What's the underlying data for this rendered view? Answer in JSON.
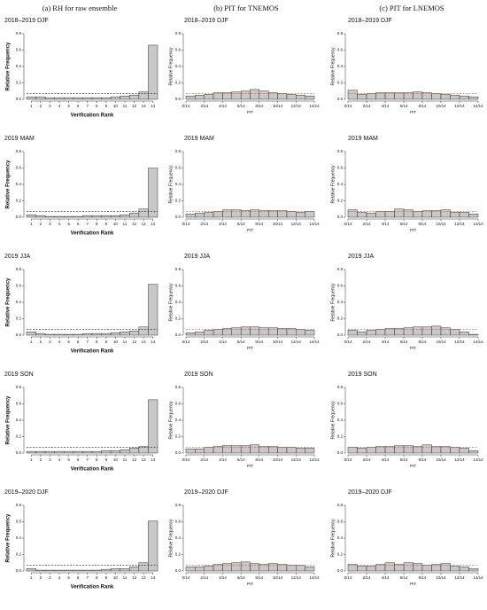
{
  "column_titles": [
    "(a) RH for raw ensemble",
    "(b) PIT for TNEMOS",
    "(c) PIT for LNEMOS"
  ],
  "chart_data": [
    {
      "type": "bar",
      "title": "2018–2019 DJF",
      "ylabel": "Relative Frequency",
      "xlabel": "Verification Rank",
      "categories": [
        "1",
        "2",
        "3",
        "4",
        "5",
        "6",
        "7",
        "8",
        "9",
        "10",
        "11",
        "12",
        "13",
        "14"
      ],
      "values": [
        0.03,
        0.03,
        0.02,
        0.02,
        0.02,
        0.02,
        0.02,
        0.02,
        0.02,
        0.03,
        0.04,
        0.05,
        0.09,
        0.66
      ],
      "color": "#c8c8c8",
      "ylim": [
        0,
        0.8
      ],
      "yticks": [
        {
          "value": 0,
          "label": "0.0"
        },
        0.2,
        0.4,
        0.6,
        0.8
      ],
      "hline": 0.071,
      "hline_color": "#222222"
    },
    {
      "type": "histogram",
      "title": "2018–2019 DJF",
      "ylabel": "Relative Frequency",
      "xlabel": "PIT",
      "bins": [
        0,
        0.071,
        0.143,
        0.214,
        0.286,
        0.357,
        0.429,
        0.5,
        0.571,
        0.643,
        0.714,
        0.786,
        0.857,
        0.929,
        1
      ],
      "values": [
        0.04,
        0.05,
        0.06,
        0.08,
        0.08,
        0.09,
        0.1,
        0.12,
        0.1,
        0.08,
        0.07,
        0.06,
        0.05,
        0.04
      ],
      "color": "#c8c8c8",
      "xlim": [
        0,
        1
      ],
      "xticks": [
        {
          "value": 0,
          "label": "0/14"
        },
        {
          "value": 0.143,
          "label": "2/14"
        },
        {
          "value": 0.286,
          "label": "4/14"
        },
        {
          "value": 0.429,
          "label": "6/14"
        },
        {
          "value": 0.571,
          "label": "8/14"
        },
        {
          "value": 0.714,
          "label": "10/14"
        },
        {
          "value": 0.857,
          "label": "12/14"
        },
        {
          "value": 1,
          "label": "14/14"
        }
      ],
      "ylim": [
        0,
        0.8
      ],
      "yticks": [
        {
          "value": 0,
          "label": "0.0"
        },
        0.2,
        0.4,
        0.6,
        0.8
      ],
      "hline": 0.071,
      "hline_color": "#e05050"
    },
    {
      "type": "histogram",
      "title": "2018–2019 DJF",
      "ylabel": "Relative Frequency",
      "xlabel": "PIT",
      "bins": [
        0,
        0.071,
        0.143,
        0.214,
        0.286,
        0.357,
        0.429,
        0.5,
        0.571,
        0.643,
        0.714,
        0.786,
        0.857,
        0.929,
        1
      ],
      "values": [
        0.11,
        0.06,
        0.07,
        0.08,
        0.08,
        0.08,
        0.08,
        0.09,
        0.08,
        0.07,
        0.06,
        0.05,
        0.04,
        0.03
      ],
      "color": "#c8c8c8",
      "xlim": [
        0,
        1
      ],
      "xticks": [
        {
          "value": 0,
          "label": "0/14"
        },
        {
          "value": 0.143,
          "label": "2/14"
        },
        {
          "value": 0.286,
          "label": "4/14"
        },
        {
          "value": 0.429,
          "label": "6/14"
        },
        {
          "value": 0.571,
          "label": "8/14"
        },
        {
          "value": 0.714,
          "label": "10/14"
        },
        {
          "value": 0.857,
          "label": "12/14"
        },
        {
          "value": 1,
          "label": "14/14"
        }
      ],
      "ylim": [
        0,
        0.8
      ],
      "yticks": [
        {
          "value": 0,
          "label": "0.0"
        },
        0.2,
        0.4,
        0.6,
        0.8
      ],
      "hline": 0.071,
      "hline_color": "#e05050"
    },
    {
      "type": "bar",
      "title": "2019 MAM",
      "ylabel": "Relative Frequency",
      "xlabel": "Verification Rank",
      "categories": [
        "1",
        "2",
        "3",
        "4",
        "5",
        "6",
        "7",
        "8",
        "9",
        "10",
        "11",
        "12",
        "13",
        "14"
      ],
      "values": [
        0.03,
        0.02,
        0.01,
        0.01,
        0.01,
        0.01,
        0.02,
        0.02,
        0.02,
        0.02,
        0.03,
        0.05,
        0.1,
        0.6
      ],
      "color": "#c8c8c8",
      "ylim": [
        0,
        0.8
      ],
      "yticks": [
        {
          "value": 0,
          "label": "0.0"
        },
        0.2,
        0.4,
        0.6,
        0.8
      ],
      "hline": 0.071,
      "hline_color": "#222222"
    },
    {
      "type": "histogram",
      "title": "2019 MAM",
      "ylabel": "Relative Frequency",
      "xlabel": "PIT",
      "bins": [
        0,
        0.071,
        0.143,
        0.214,
        0.286,
        0.357,
        0.429,
        0.5,
        0.571,
        0.643,
        0.714,
        0.786,
        0.857,
        0.929,
        1
      ],
      "values": [
        0.04,
        0.05,
        0.06,
        0.07,
        0.09,
        0.09,
        0.08,
        0.09,
        0.08,
        0.08,
        0.08,
        0.07,
        0.06,
        0.07
      ],
      "color": "#c8c8c8",
      "xlim": [
        0,
        1
      ],
      "xticks": [
        {
          "value": 0,
          "label": "0/14"
        },
        {
          "value": 0.143,
          "label": "2/14"
        },
        {
          "value": 0.286,
          "label": "4/14"
        },
        {
          "value": 0.429,
          "label": "6/14"
        },
        {
          "value": 0.571,
          "label": "8/14"
        },
        {
          "value": 0.714,
          "label": "10/14"
        },
        {
          "value": 0.857,
          "label": "12/14"
        },
        {
          "value": 1,
          "label": "14/14"
        }
      ],
      "ylim": [
        0,
        0.8
      ],
      "yticks": [
        {
          "value": 0,
          "label": "0.0"
        },
        0.2,
        0.4,
        0.6,
        0.8
      ],
      "hline": 0.071,
      "hline_color": "#e05050"
    },
    {
      "type": "histogram",
      "title": "2019 MAM",
      "ylabel": "Relative Frequency",
      "xlabel": "PIT",
      "bins": [
        0,
        0.071,
        0.143,
        0.214,
        0.286,
        0.357,
        0.429,
        0.5,
        0.571,
        0.643,
        0.714,
        0.786,
        0.857,
        0.929,
        1
      ],
      "values": [
        0.09,
        0.06,
        0.05,
        0.07,
        0.07,
        0.1,
        0.09,
        0.07,
        0.08,
        0.08,
        0.09,
        0.06,
        0.06,
        0.04
      ],
      "color": "#c8c8c8",
      "xlim": [
        0,
        1
      ],
      "xticks": [
        {
          "value": 0,
          "label": "0/14"
        },
        {
          "value": 0.143,
          "label": "2/14"
        },
        {
          "value": 0.286,
          "label": "4/14"
        },
        {
          "value": 0.429,
          "label": "6/14"
        },
        {
          "value": 0.571,
          "label": "8/14"
        },
        {
          "value": 0.714,
          "label": "10/14"
        },
        {
          "value": 0.857,
          "label": "12/14"
        },
        {
          "value": 1,
          "label": "14/14"
        }
      ],
      "ylim": [
        0,
        0.8
      ],
      "yticks": [
        {
          "value": 0,
          "label": "0.0"
        },
        0.2,
        0.4,
        0.6,
        0.8
      ],
      "hline": 0.071,
      "hline_color": "#e05050"
    },
    {
      "type": "bar",
      "title": "2019 JJA",
      "ylabel": "Relative Frequency",
      "xlabel": "Verification Rank",
      "categories": [
        "1",
        "2",
        "3",
        "4",
        "5",
        "6",
        "7",
        "8",
        "9",
        "10",
        "11",
        "12",
        "13",
        "14"
      ],
      "values": [
        0.04,
        0.02,
        0.01,
        0.01,
        0.01,
        0.01,
        0.02,
        0.02,
        0.02,
        0.03,
        0.04,
        0.05,
        0.1,
        0.62
      ],
      "color": "#c8c8c8",
      "ylim": [
        0,
        0.8
      ],
      "yticks": [
        {
          "value": 0,
          "label": "0.0"
        },
        0.2,
        0.4,
        0.6,
        0.8
      ],
      "hline": 0.071,
      "hline_color": "#222222"
    },
    {
      "type": "histogram",
      "title": "2019 JJA",
      "ylabel": "Relative Frequency",
      "xlabel": "PIT",
      "bins": [
        0,
        0.071,
        0.143,
        0.214,
        0.286,
        0.357,
        0.429,
        0.5,
        0.571,
        0.643,
        0.714,
        0.786,
        0.857,
        0.929,
        1
      ],
      "values": [
        0.03,
        0.04,
        0.06,
        0.07,
        0.08,
        0.09,
        0.1,
        0.1,
        0.09,
        0.09,
        0.08,
        0.08,
        0.07,
        0.06
      ],
      "color": "#c8c8c8",
      "xlim": [
        0,
        1
      ],
      "xticks": [
        {
          "value": 0,
          "label": "0/14"
        },
        {
          "value": 0.143,
          "label": "2/14"
        },
        {
          "value": 0.286,
          "label": "4/14"
        },
        {
          "value": 0.429,
          "label": "6/14"
        },
        {
          "value": 0.571,
          "label": "8/14"
        },
        {
          "value": 0.714,
          "label": "10/14"
        },
        {
          "value": 0.857,
          "label": "12/14"
        },
        {
          "value": 1,
          "label": "14/14"
        }
      ],
      "ylim": [
        0,
        0.8
      ],
      "yticks": [
        {
          "value": 0,
          "label": "0.0"
        },
        0.2,
        0.4,
        0.6,
        0.8
      ],
      "hline": 0.071,
      "hline_color": "#e05050"
    },
    {
      "type": "histogram",
      "title": "2019 JJA",
      "ylabel": "Relative Frequency",
      "xlabel": "PIT",
      "bins": [
        0,
        0.071,
        0.143,
        0.214,
        0.286,
        0.357,
        0.429,
        0.5,
        0.571,
        0.643,
        0.714,
        0.786,
        0.857,
        0.929,
        1
      ],
      "values": [
        0.06,
        0.04,
        0.06,
        0.07,
        0.08,
        0.08,
        0.09,
        0.1,
        0.1,
        0.11,
        0.09,
        0.07,
        0.04,
        0.01
      ],
      "color": "#c8c8c8",
      "xlim": [
        0,
        1
      ],
      "xticks": [
        {
          "value": 0,
          "label": "0/14"
        },
        {
          "value": 0.143,
          "label": "2/14"
        },
        {
          "value": 0.286,
          "label": "4/14"
        },
        {
          "value": 0.429,
          "label": "6/14"
        },
        {
          "value": 0.571,
          "label": "8/14"
        },
        {
          "value": 0.714,
          "label": "10/14"
        },
        {
          "value": 0.857,
          "label": "12/14"
        },
        {
          "value": 1,
          "label": "14/14"
        }
      ],
      "ylim": [
        0,
        0.8
      ],
      "yticks": [
        {
          "value": 0,
          "label": "0.0"
        },
        0.2,
        0.4,
        0.6,
        0.8
      ],
      "hline": 0.071,
      "hline_color": "#e05050"
    },
    {
      "type": "bar",
      "title": "2019 SON",
      "ylabel": "Relative Frequency",
      "xlabel": "Verification Rank",
      "categories": [
        "1",
        "2",
        "3",
        "4",
        "5",
        "6",
        "7",
        "8",
        "9",
        "10",
        "11",
        "12",
        "13",
        "14"
      ],
      "values": [
        0.02,
        0.02,
        0.02,
        0.02,
        0.02,
        0.02,
        0.02,
        0.02,
        0.03,
        0.03,
        0.04,
        0.06,
        0.08,
        0.65
      ],
      "color": "#c8c8c8",
      "ylim": [
        0,
        0.8
      ],
      "yticks": [
        {
          "value": 0,
          "label": "0.0"
        },
        0.2,
        0.4,
        0.6,
        0.8
      ],
      "hline": 0.071,
      "hline_color": "#222222"
    },
    {
      "type": "histogram",
      "title": "2019 SON",
      "ylabel": "Relative Frequency",
      "xlabel": "PIT",
      "bins": [
        0,
        0.071,
        0.143,
        0.214,
        0.286,
        0.357,
        0.429,
        0.5,
        0.571,
        0.643,
        0.714,
        0.786,
        0.857,
        0.929,
        1
      ],
      "values": [
        0.05,
        0.05,
        0.07,
        0.08,
        0.09,
        0.09,
        0.09,
        0.1,
        0.08,
        0.08,
        0.07,
        0.07,
        0.06,
        0.06
      ],
      "color": "#c8c8c8",
      "xlim": [
        0,
        1
      ],
      "xticks": [
        {
          "value": 0,
          "label": "0/14"
        },
        {
          "value": 0.143,
          "label": "2/14"
        },
        {
          "value": 0.286,
          "label": "4/14"
        },
        {
          "value": 0.429,
          "label": "6/14"
        },
        {
          "value": 0.571,
          "label": "8/14"
        },
        {
          "value": 0.714,
          "label": "10/14"
        },
        {
          "value": 0.857,
          "label": "12/14"
        },
        {
          "value": 1,
          "label": "14/14"
        }
      ],
      "ylim": [
        0,
        0.8
      ],
      "yticks": [
        {
          "value": 0,
          "label": "0.0"
        },
        0.2,
        0.4,
        0.6,
        0.8
      ],
      "hline": 0.071,
      "hline_color": "#e05050"
    },
    {
      "type": "histogram",
      "title": "2019 SON",
      "ylabel": "Relative Frequency",
      "xlabel": "PIT",
      "bins": [
        0,
        0.071,
        0.143,
        0.214,
        0.286,
        0.357,
        0.429,
        0.5,
        0.571,
        0.643,
        0.714,
        0.786,
        0.857,
        0.929,
        1
      ],
      "values": [
        0.07,
        0.06,
        0.07,
        0.08,
        0.08,
        0.09,
        0.09,
        0.08,
        0.1,
        0.08,
        0.08,
        0.07,
        0.06,
        0.03
      ],
      "color": "#c8c8c8",
      "xlim": [
        0,
        1
      ],
      "xticks": [
        {
          "value": 0,
          "label": "0/14"
        },
        {
          "value": 0.143,
          "label": "2/14"
        },
        {
          "value": 0.286,
          "label": "4/14"
        },
        {
          "value": 0.429,
          "label": "6/14"
        },
        {
          "value": 0.571,
          "label": "8/14"
        },
        {
          "value": 0.714,
          "label": "10/14"
        },
        {
          "value": 0.857,
          "label": "12/14"
        },
        {
          "value": 1,
          "label": "14/14"
        }
      ],
      "ylim": [
        0,
        0.8
      ],
      "yticks": [
        {
          "value": 0,
          "label": "0.0"
        },
        0.2,
        0.4,
        0.6,
        0.8
      ],
      "hline": 0.071,
      "hline_color": "#e05050"
    },
    {
      "type": "bar",
      "title": "2019–2020 DJF",
      "ylabel": "Relative Frequency",
      "xlabel": "Verification Rank",
      "categories": [
        "1",
        "2",
        "3",
        "4",
        "5",
        "6",
        "7",
        "8",
        "9",
        "10",
        "11",
        "12",
        "13",
        "14"
      ],
      "values": [
        0.03,
        0.01,
        0.01,
        0.01,
        0.01,
        0.01,
        0.01,
        0.01,
        0.02,
        0.03,
        0.03,
        0.05,
        0.1,
        0.61
      ],
      "color": "#c8c8c8",
      "ylim": [
        0,
        0.8
      ],
      "yticks": [
        {
          "value": 0,
          "label": "0.0"
        },
        0.2,
        0.4,
        0.6,
        0.8
      ],
      "hline": 0.071,
      "hline_color": "#222222"
    },
    {
      "type": "histogram",
      "title": "2019–2020 DJF",
      "ylabel": "Relative Frequency",
      "xlabel": "PIT",
      "bins": [
        0,
        0.071,
        0.143,
        0.214,
        0.286,
        0.357,
        0.429,
        0.5,
        0.571,
        0.643,
        0.714,
        0.786,
        0.857,
        0.929,
        1
      ],
      "values": [
        0.05,
        0.05,
        0.06,
        0.08,
        0.09,
        0.1,
        0.11,
        0.09,
        0.08,
        0.09,
        0.08,
        0.07,
        0.07,
        0.05
      ],
      "color": "#c8c8c8",
      "xlim": [
        0,
        1
      ],
      "xticks": [
        {
          "value": 0,
          "label": "0/14"
        },
        {
          "value": 0.143,
          "label": "2/14"
        },
        {
          "value": 0.286,
          "label": "4/14"
        },
        {
          "value": 0.429,
          "label": "6/14"
        },
        {
          "value": 0.571,
          "label": "8/14"
        },
        {
          "value": 0.714,
          "label": "10/14"
        },
        {
          "value": 0.857,
          "label": "12/14"
        },
        {
          "value": 1,
          "label": "14/14"
        }
      ],
      "ylim": [
        0,
        0.8
      ],
      "yticks": [
        {
          "value": 0,
          "label": "0.0"
        },
        0.2,
        0.4,
        0.6,
        0.8
      ],
      "hline": 0.071,
      "hline_color": "#e05050"
    },
    {
      "type": "histogram",
      "title": "2019–2020 DJF",
      "ylabel": "Relative Frequency",
      "xlabel": "PIT",
      "bins": [
        0,
        0.071,
        0.143,
        0.214,
        0.286,
        0.357,
        0.429,
        0.5,
        0.571,
        0.643,
        0.714,
        0.786,
        0.857,
        0.929,
        1
      ],
      "values": [
        0.08,
        0.06,
        0.06,
        0.08,
        0.1,
        0.08,
        0.1,
        0.09,
        0.07,
        0.08,
        0.09,
        0.06,
        0.05,
        0.03
      ],
      "color": "#c8c8c8",
      "xlim": [
        0,
        1
      ],
      "xticks": [
        {
          "value": 0,
          "label": "0/14"
        },
        {
          "value": 0.143,
          "label": "2/14"
        },
        {
          "value": 0.286,
          "label": "4/14"
        },
        {
          "value": 0.429,
          "label": "6/14"
        },
        {
          "value": 0.571,
          "label": "8/14"
        },
        {
          "value": 0.714,
          "label": "10/14"
        },
        {
          "value": 0.857,
          "label": "12/14"
        },
        {
          "value": 1,
          "label": "14/14"
        }
      ],
      "ylim": [
        0,
        0.8
      ],
      "yticks": [
        {
          "value": 0,
          "label": "0.0"
        },
        0.2,
        0.4,
        0.6,
        0.8
      ],
      "hline": 0.071,
      "hline_color": "#e05050"
    }
  ]
}
